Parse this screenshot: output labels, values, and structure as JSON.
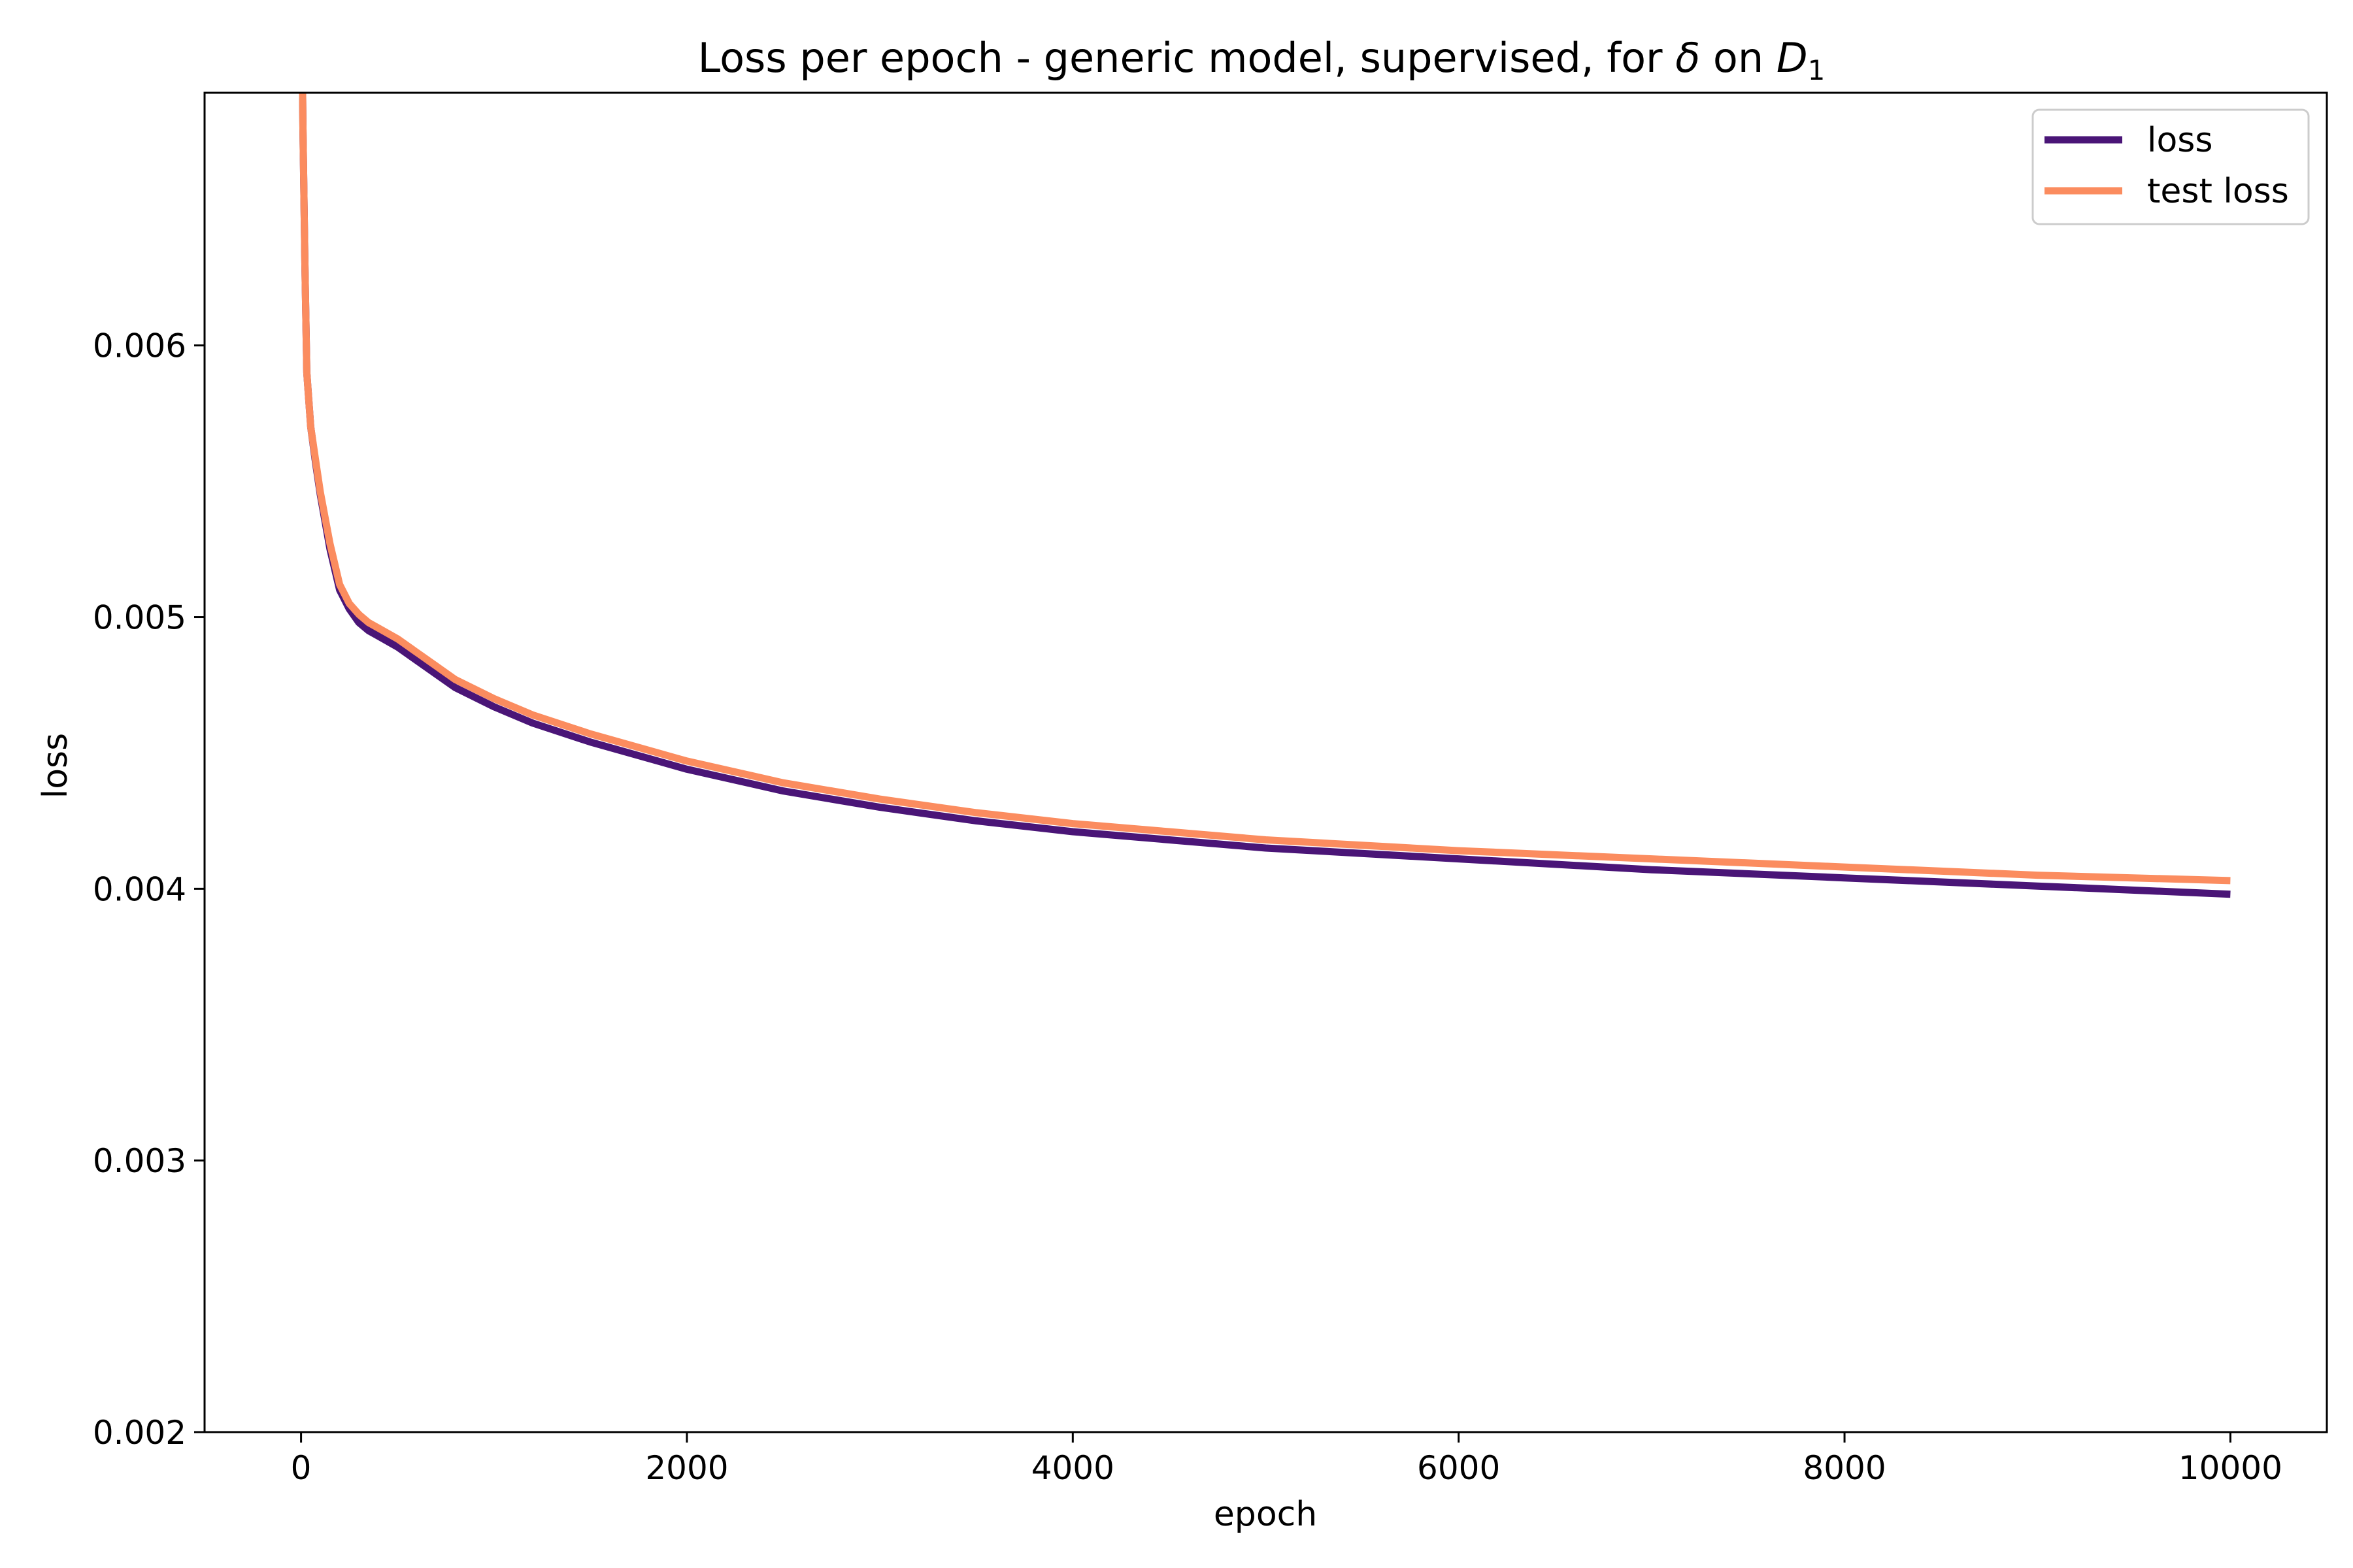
{
  "chart_data": {
    "type": "line",
    "title_prefix": "Loss per epoch - generic model, supervised, for ",
    "title_delta": "δ",
    "title_mid": " on ",
    "title_d": "D",
    "title_sub": "1",
    "xlabel": "epoch",
    "ylabel": "loss",
    "xlim": [
      -500,
      10500
    ],
    "ylim": [
      0.002,
      0.00693
    ],
    "xticks": [
      0,
      2000,
      4000,
      6000,
      8000,
      10000
    ],
    "xtick_labels": [
      "0",
      "2000",
      "4000",
      "6000",
      "8000",
      "10000"
    ],
    "yticks": [
      0.002,
      0.003,
      0.004,
      0.005,
      0.006
    ],
    "ytick_labels": [
      "0.002",
      "0.003",
      "0.004",
      "0.005",
      "0.006"
    ],
    "grid": false,
    "legend_position": "top-right",
    "series": [
      {
        "name": "loss",
        "color": "#4a1577",
        "x": [
          0,
          10,
          20,
          30,
          50,
          75,
          100,
          150,
          200,
          250,
          300,
          350,
          400,
          500,
          600,
          700,
          800,
          1000,
          1200,
          1500,
          2000,
          2500,
          3000,
          3500,
          4000,
          4500,
          5000,
          6000,
          7000,
          8000,
          9000,
          10000
        ],
        "y": [
          0.0075,
          0.0068,
          0.0063,
          0.0059,
          0.0057,
          0.00557,
          0.00545,
          0.00525,
          0.0051,
          0.00503,
          0.00498,
          0.00495,
          0.00493,
          0.00489,
          0.00484,
          0.00479,
          0.00474,
          0.00467,
          0.00461,
          0.00454,
          0.00444,
          0.00436,
          0.0043,
          0.00425,
          0.00421,
          0.00418,
          0.00415,
          0.00411,
          0.00407,
          0.00404,
          0.00401,
          0.00398
        ]
      },
      {
        "name": "test loss",
        "color": "#fb8c5f",
        "x": [
          0,
          10,
          20,
          30,
          50,
          75,
          100,
          150,
          200,
          250,
          300,
          350,
          400,
          500,
          600,
          700,
          800,
          1000,
          1200,
          1500,
          2000,
          2500,
          3000,
          3500,
          4000,
          4500,
          5000,
          6000,
          7000,
          8000,
          9000,
          10000
        ],
        "y": [
          0.0075,
          0.0068,
          0.0063,
          0.0059,
          0.0057,
          0.00558,
          0.00546,
          0.00527,
          0.00512,
          0.00505,
          0.00501,
          0.00498,
          0.00496,
          0.00492,
          0.00487,
          0.00482,
          0.00477,
          0.0047,
          0.00464,
          0.00457,
          0.00447,
          0.00439,
          0.00433,
          0.00428,
          0.00424,
          0.00421,
          0.00418,
          0.00414,
          0.00411,
          0.00408,
          0.00405,
          0.00403
        ]
      }
    ]
  }
}
